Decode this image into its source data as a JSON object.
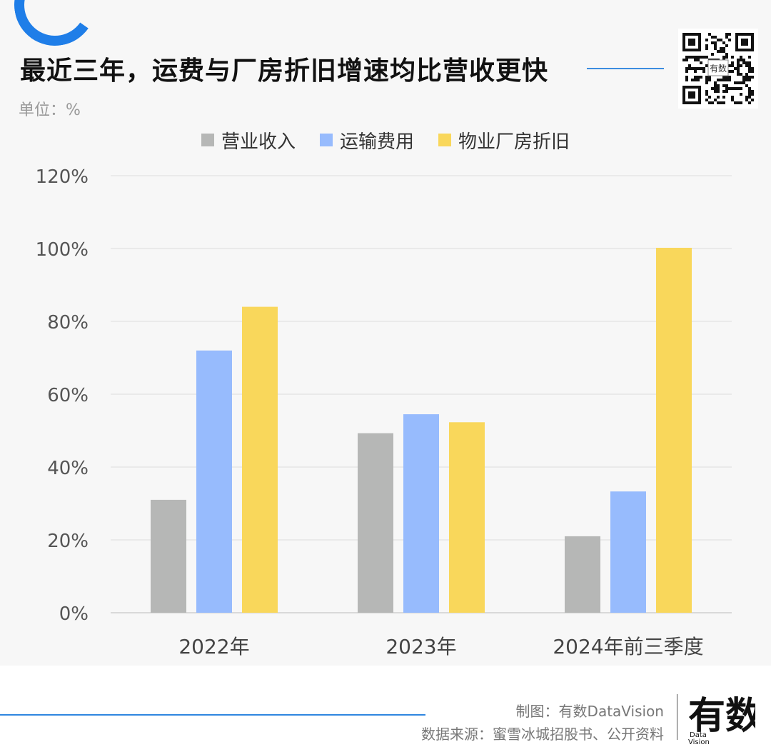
{
  "header": {
    "title": "最近三年，运费与厂房折旧增速均比营收更快",
    "unit": "单位：%"
  },
  "footer": {
    "credit": "制图：有数DataVision",
    "source": "数据来源：蜜雪冰城招股书、公开资料",
    "logo_text": "有数",
    "logo_sub1": "Data",
    "logo_sub2": "Vision"
  },
  "qr": {
    "center_text": "有数"
  },
  "colors": {
    "accent": "#1f7ee8",
    "revenue": "#b6b7b6",
    "shipping": "#97bbfd",
    "depreciation": "#f9d75b"
  },
  "chart_data": {
    "type": "bar",
    "categories": [
      "2022年",
      "2023年",
      "2024年前三季度"
    ],
    "series": [
      {
        "name": "营业收入",
        "values": [
          31,
          49.3,
          21
        ],
        "color": "#b6b7b6"
      },
      {
        "name": "运输费用",
        "values": [
          72,
          54.5,
          33.3
        ],
        "color": "#97bbfd"
      },
      {
        "name": "物业厂房折旧",
        "values": [
          84,
          52.3,
          100.2
        ],
        "color": "#f9d75b"
      }
    ],
    "yticks": [
      "0%",
      "20%",
      "40%",
      "60%",
      "80%",
      "100%",
      "120%"
    ],
    "ylim": [
      0,
      120
    ],
    "ylabel": "",
    "xlabel": "",
    "grid": true,
    "legend": "top-center"
  }
}
